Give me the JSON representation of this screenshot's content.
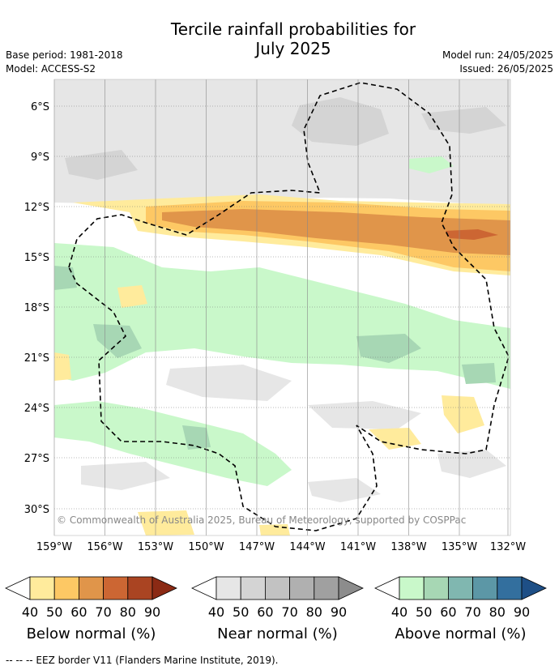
{
  "header": {
    "title_line1": "Tercile rainfall probabilities for",
    "title_line2": "July 2025",
    "base_period": "Base period: 1981-2018",
    "model": "Model: ACCESS-S2",
    "model_run": "Model run: 24/05/2025",
    "issued": "Issued: 26/05/2025"
  },
  "map": {
    "lat_labels": [
      "6°S",
      "9°S",
      "12°S",
      "15°S",
      "18°S",
      "21°S",
      "24°S",
      "27°S",
      "30°S"
    ],
    "lon_labels": [
      "159°W",
      "156°W",
      "153°W",
      "150°W",
      "147°W",
      "144°W",
      "141°W",
      "138°W",
      "135°W",
      "132°W"
    ],
    "credit": "© Commonwealth of Australia 2025, Bureau of Meteorology, supported by COSPPac"
  },
  "colorbars": [
    {
      "label": "Below normal (%)",
      "ticks": [
        "40",
        "50",
        "60",
        "70",
        "80",
        "90"
      ],
      "colors": [
        "#ffffff",
        "#ffeb9c",
        "#fdc864",
        "#e0954a",
        "#cc6633",
        "#aa4422",
        "#8b2a14"
      ]
    },
    {
      "label": "Near normal (%)",
      "ticks": [
        "40",
        "50",
        "60",
        "70",
        "80",
        "90"
      ],
      "colors": [
        "#ffffff",
        "#e6e6e6",
        "#d4d4d4",
        "#c2c2c2",
        "#b0b0b0",
        "#a0a0a0",
        "#8c8c8c"
      ]
    },
    {
      "label": "Above normal (%)",
      "ticks": [
        "40",
        "50",
        "60",
        "70",
        "80",
        "90"
      ],
      "colors": [
        "#ffffff",
        "#c9f8ca",
        "#a7d7b4",
        "#80b7b0",
        "#5c97a6",
        "#336f9e",
        "#1e4f86"
      ]
    }
  ],
  "footer": {
    "legend": "--  --  -- EEZ border V11 (Flanders Marine Institute, 2019)."
  }
}
